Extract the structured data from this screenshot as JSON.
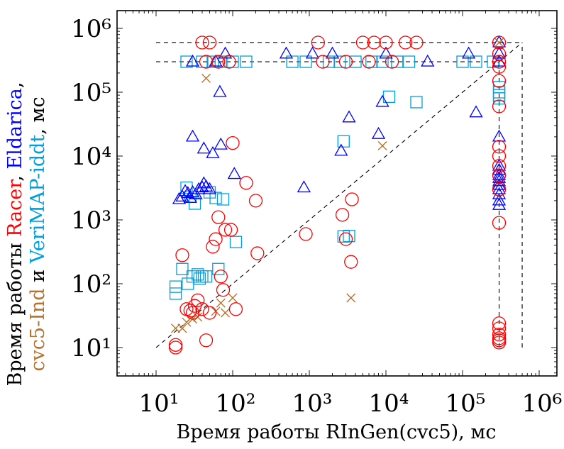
{
  "chart_data": {
    "type": "scatter",
    "xscale": "log",
    "yscale": "log",
    "xlim": [
      4,
      1000000
    ],
    "ylim": [
      4,
      1000000
    ],
    "grid": false,
    "legend": "none",
    "xlabel": "Время работы RInGen(cvc5), мс",
    "ylabel": {
      "prefix": "Время работы ",
      "parts": [
        {
          "text": "Racer",
          "color": "#ff0000"
        },
        {
          "text": ", ",
          "color": "#000000"
        },
        {
          "text": "Eldarica",
          "color": "#0000ff"
        },
        {
          "text": ",",
          "color": "#000000"
        }
      ],
      "line2": [
        {
          "text": "cvc5-Ind",
          "color": "#b8722c"
        },
        {
          "text": " и ",
          "color": "#000000"
        },
        {
          "text": "VeriMAP-iddt",
          "color": "#00a0e0"
        },
        {
          "text": ", мс",
          "color": "#000000"
        }
      ]
    },
    "xticks": [
      {
        "value": 10,
        "label": "10¹"
      },
      {
        "value": 100,
        "label": "10²"
      },
      {
        "value": 1000,
        "label": "10³"
      },
      {
        "value": 10000,
        "label": "10⁴"
      },
      {
        "value": 100000,
        "label": "10⁵"
      },
      {
        "value": 1000000,
        "label": "10⁶"
      }
    ],
    "yticks": [
      {
        "value": 10,
        "label": "10¹"
      },
      {
        "value": 100,
        "label": "10²"
      },
      {
        "value": 1000,
        "label": "10³"
      },
      {
        "value": 10000,
        "label": "10⁴"
      },
      {
        "value": 100000,
        "label": "10⁵"
      },
      {
        "value": 1000000,
        "label": "10⁶"
      }
    ],
    "reference_lines": {
      "diagonal": {
        "from": 10,
        "to": 600000
      },
      "timeout": 600000,
      "memout": 300000
    },
    "series": [
      {
        "color": "#ff0000",
        "marker": "circle",
        "points": [
          [
            18,
            10
          ],
          [
            18,
            11
          ],
          [
            22,
            280
          ],
          [
            25,
            40
          ],
          [
            28,
            38
          ],
          [
            30,
            35
          ],
          [
            32,
            45
          ],
          [
            35,
            55
          ],
          [
            40,
            40
          ],
          [
            45,
            13
          ],
          [
            50,
            35
          ],
          [
            55,
            380
          ],
          [
            60,
            500
          ],
          [
            65,
            1100
          ],
          [
            70,
            130
          ],
          [
            75,
            80
          ],
          [
            80,
            700
          ],
          [
            95,
            700
          ],
          [
            100,
            16000
          ],
          [
            110,
            40
          ],
          [
            150,
            3800
          ],
          [
            200,
            2000
          ],
          [
            210,
            300
          ],
          [
            900,
            600
          ],
          [
            2700,
            1200
          ],
          [
            3000,
            500
          ],
          [
            3500,
            220
          ],
          [
            3600,
            2100
          ],
          [
            300000,
            12
          ],
          [
            300000,
            13
          ],
          [
            300000,
            14
          ],
          [
            300000,
            16
          ],
          [
            300000,
            20
          ],
          [
            300000,
            24
          ],
          [
            300000,
            900
          ],
          [
            300000,
            3000
          ],
          [
            300000,
            5000
          ],
          [
            300000,
            7000
          ],
          [
            300000,
            10000
          ],
          [
            300000,
            14000
          ],
          [
            300000,
            60000
          ],
          [
            300000,
            150000
          ],
          [
            300000,
            250000
          ],
          [
            300000,
            300000
          ],
          [
            300000,
            400000
          ],
          [
            300000,
            600000
          ],
          [
            40,
            600000
          ],
          [
            50,
            600000
          ],
          [
            45,
            300000
          ],
          [
            65,
            300000
          ],
          [
            90,
            300000
          ],
          [
            1300,
            600000
          ],
          [
            5000,
            600000
          ],
          [
            7000,
            600000
          ],
          [
            10000,
            600000
          ],
          [
            18000,
            600000
          ],
          [
            25000,
            600000
          ],
          [
            1500,
            300000
          ],
          [
            3000,
            300000
          ],
          [
            6000,
            300000
          ],
          [
            12000,
            300000
          ]
        ]
      },
      {
        "color": "#0000ff",
        "marker": "triangle",
        "points": [
          [
            20,
            2100
          ],
          [
            22,
            2300
          ],
          [
            24,
            2800
          ],
          [
            26,
            2600
          ],
          [
            28,
            2200
          ],
          [
            30,
            2700
          ],
          [
            33,
            2500
          ],
          [
            36,
            3000
          ],
          [
            40,
            3200
          ],
          [
            42,
            3700
          ],
          [
            45,
            3300
          ],
          [
            50,
            3000
          ],
          [
            30,
            20000
          ],
          [
            42,
            13000
          ],
          [
            55,
            11000
          ],
          [
            70,
            15000
          ],
          [
            68,
            100000
          ],
          [
            105,
            5200
          ],
          [
            850,
            3200
          ],
          [
            2600,
            12000
          ],
          [
            3300,
            40000
          ],
          [
            8000,
            22000
          ],
          [
            9000,
            70000
          ],
          [
            150000,
            48000
          ],
          [
            300000,
            1700
          ],
          [
            300000,
            2000
          ],
          [
            300000,
            2500
          ],
          [
            300000,
            3000
          ],
          [
            300000,
            3500
          ],
          [
            300000,
            4000
          ],
          [
            300000,
            4500
          ],
          [
            300000,
            5000
          ],
          [
            300000,
            6000
          ],
          [
            300000,
            7000
          ],
          [
            300000,
            20000
          ],
          [
            300000,
            300000
          ],
          [
            300000,
            400000
          ],
          [
            300000,
            600000
          ],
          [
            80,
            400000
          ],
          [
            500,
            400000
          ],
          [
            1100,
            400000
          ],
          [
            2000,
            400000
          ],
          [
            10000,
            400000
          ],
          [
            35000,
            300000
          ],
          [
            120000,
            400000
          ],
          [
            30,
            300000
          ],
          [
            60,
            300000
          ]
        ]
      },
      {
        "color": "#00a0e0",
        "marker": "square",
        "points": [
          [
            18,
            70
          ],
          [
            18,
            90
          ],
          [
            22,
            170
          ],
          [
            25,
            3200
          ],
          [
            26,
            100
          ],
          [
            28,
            2300
          ],
          [
            30,
            130
          ],
          [
            32,
            1800
          ],
          [
            35,
            140
          ],
          [
            37,
            120
          ],
          [
            40,
            130
          ],
          [
            45,
            130
          ],
          [
            50,
            2700
          ],
          [
            60,
            2200
          ],
          [
            65,
            170
          ],
          [
            75,
            2100
          ],
          [
            110,
            450
          ],
          [
            2800,
            550
          ],
          [
            2800,
            17000
          ],
          [
            3300,
            560
          ],
          [
            11000,
            85000
          ],
          [
            25000,
            70000
          ],
          [
            300000,
            80000
          ],
          [
            300000,
            90000
          ],
          [
            300000,
            100000
          ],
          [
            300000,
            120000
          ],
          [
            25,
            300000
          ],
          [
            40,
            300000
          ],
          [
            55,
            300000
          ],
          [
            70,
            300000
          ],
          [
            100,
            300000
          ],
          [
            150,
            300000
          ],
          [
            600,
            300000
          ],
          [
            900,
            300000
          ],
          [
            1800,
            300000
          ],
          [
            2500,
            300000
          ],
          [
            4000,
            300000
          ],
          [
            6500,
            300000
          ],
          [
            9000,
            300000
          ],
          [
            14000,
            300000
          ],
          [
            20000,
            300000
          ],
          [
            100000,
            300000
          ],
          [
            150000,
            300000
          ],
          [
            250000,
            300000
          ]
        ]
      },
      {
        "color": "#b8722c",
        "marker": "x",
        "points": [
          [
            18,
            20
          ],
          [
            22,
            20
          ],
          [
            25,
            25
          ],
          [
            30,
            28
          ],
          [
            35,
            30
          ],
          [
            45,
            165000
          ],
          [
            60,
            37
          ],
          [
            70,
            50
          ],
          [
            80,
            35
          ],
          [
            100,
            60
          ],
          [
            3500,
            60
          ],
          [
            9000,
            14500
          ],
          [
            300000,
            600000
          ]
        ]
      }
    ]
  }
}
